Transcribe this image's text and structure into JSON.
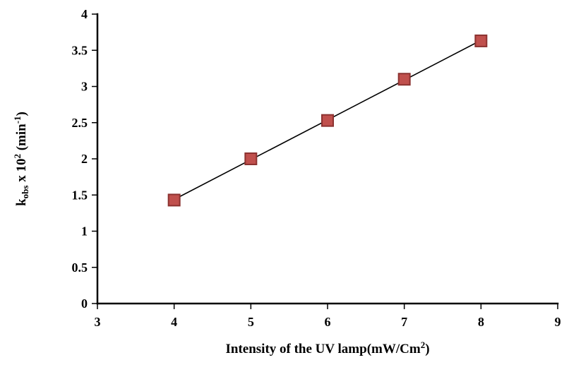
{
  "chart_data": {
    "type": "scatter",
    "title": "",
    "x": [
      4,
      5,
      6,
      7,
      8
    ],
    "y": [
      1.43,
      2.0,
      2.53,
      3.1,
      3.63
    ],
    "xlim": [
      3,
      9
    ],
    "ylim": [
      0,
      4
    ],
    "xticks": [
      3,
      4,
      5,
      6,
      7,
      8,
      9
    ],
    "xtick_labels": [
      "3",
      "4",
      "5",
      "6",
      "7",
      "8",
      "9"
    ],
    "yticks": [
      0,
      0.5,
      1,
      1.5,
      2,
      2.5,
      3,
      3.5,
      4
    ],
    "ytick_labels": [
      "0",
      "0.5",
      "1",
      "1.5",
      "2",
      "2.5",
      "3",
      "3.5",
      "4"
    ],
    "xlabel_plain": "Intensity of  the UV lamp(mW/Cm2)",
    "ylabel_plain": "kobs x 102 (min-1)",
    "xlabel_rich": [
      {
        "t": "Intensity of  the UV lamp(mW/Cm"
      },
      {
        "t": "2",
        "sup": true
      },
      {
        "t": ")"
      }
    ],
    "ylabel_rich": [
      {
        "t": "k"
      },
      {
        "t": "obs",
        "sub": true
      },
      {
        "t": " x 10"
      },
      {
        "t": "2",
        "sup": true
      },
      {
        "t": " (min"
      },
      {
        "t": "-1",
        "sup": true
      },
      {
        "t": ")"
      }
    ],
    "legend": "none",
    "grid": false,
    "trendline": true,
    "marker": {
      "shape": "square",
      "size": 16,
      "fill": "#C0504D",
      "stroke": "#8C3230"
    },
    "line_color": "#000000",
    "axis_color": "#000000"
  }
}
